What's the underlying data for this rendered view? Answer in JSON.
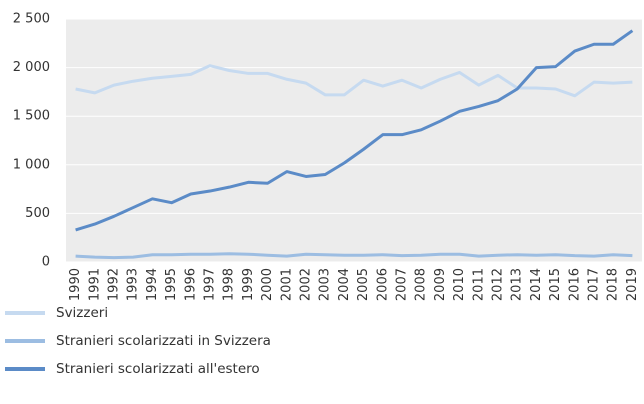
{
  "chart_data": {
    "type": "line",
    "categories": [
      "1990",
      "1991",
      "1992",
      "1993",
      "1994",
      "1995",
      "1996",
      "1997",
      "1998",
      "1999",
      "2000",
      "2001",
      "2002",
      "2003",
      "2004",
      "2005",
      "2006",
      "2007",
      "2008",
      "2009",
      "2010",
      "2011",
      "2012",
      "2013",
      "2014",
      "2015",
      "2016",
      "2017",
      "2018",
      "2019"
    ],
    "series": [
      {
        "name": "Svizzeri",
        "color": "#c6daf0",
        "values": [
          1780,
          1740,
          1820,
          1860,
          1890,
          1910,
          1930,
          2020,
          1970,
          1940,
          1940,
          1880,
          1840,
          1720,
          1720,
          1870,
          1810,
          1870,
          1790,
          1880,
          1950,
          1820,
          1920,
          1790,
          1790,
          1780,
          1710,
          1850,
          1840,
          1850
        ]
      },
      {
        "name": "Stranieri scolarizzati in Svizzera",
        "color": "#9cbde2",
        "values": [
          60,
          50,
          45,
          50,
          75,
          75,
          80,
          80,
          85,
          80,
          70,
          60,
          80,
          75,
          70,
          70,
          75,
          65,
          70,
          80,
          80,
          60,
          70,
          75,
          70,
          75,
          65,
          60,
          75,
          65
        ]
      },
      {
        "name": "Stranieri scolarizzati all'estero",
        "color": "#5b8bc7",
        "values": [
          330,
          390,
          470,
          560,
          650,
          610,
          700,
          730,
          770,
          820,
          810,
          930,
          880,
          900,
          1020,
          1160,
          1310,
          1310,
          1360,
          1450,
          1550,
          1600,
          1660,
          1780,
          2000,
          2010,
          2170,
          2240,
          2240,
          2380
        ]
      }
    ],
    "ylim": [
      0,
      2500
    ],
    "yticks": [
      0,
      500,
      {
        "value": 1000,
        "label": "1 000"
      },
      {
        "value": 1500,
        "label": "1 500"
      },
      {
        "value": 2000,
        "label": "2 000"
      },
      {
        "value": 2500,
        "label": "2 500"
      }
    ],
    "grid": true
  }
}
